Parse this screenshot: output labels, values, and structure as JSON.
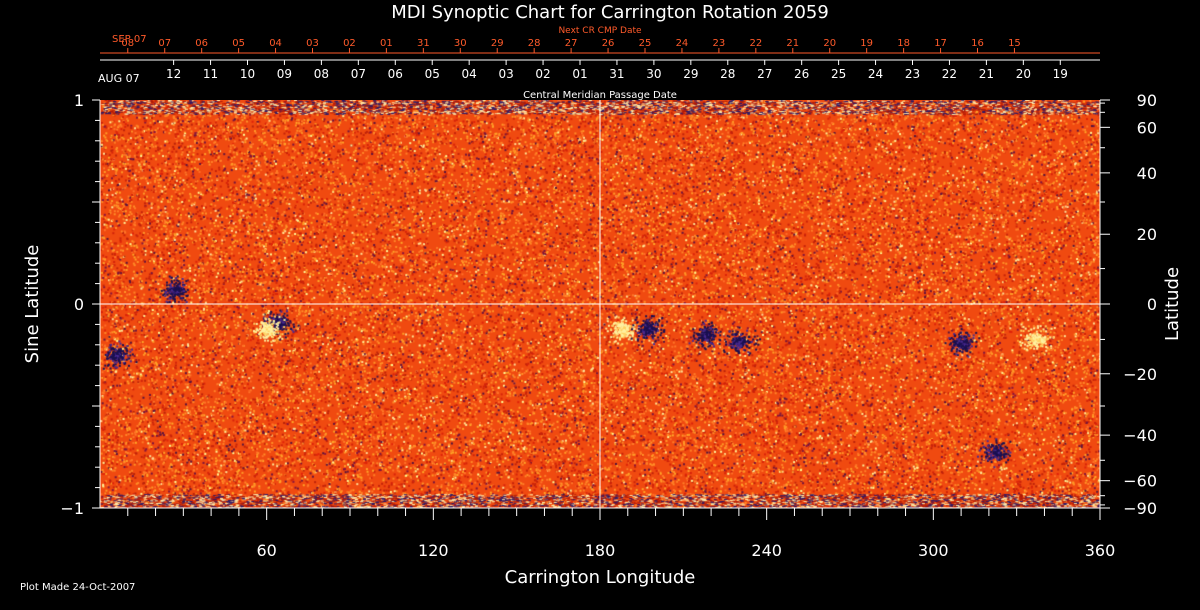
{
  "chart_data": {
    "type": "heatmap",
    "title": "MDI Synoptic Chart for Carrington Rotation 2059",
    "xlabel": "Carrington Longitude",
    "ylabel_left": "Sine Latitude",
    "ylabel_right": "Latitude",
    "xlim": [
      0,
      360
    ],
    "ylim": [
      -1,
      1
    ],
    "x_ticks": [
      60,
      120,
      180,
      240,
      300,
      360
    ],
    "y_ticks_left": [
      {
        "value": 1,
        "label": "1"
      },
      {
        "value": 0,
        "label": "0"
      },
      {
        "value": -1,
        "label": "−1"
      }
    ],
    "y_ticks_right": [
      {
        "deg": 90,
        "label": "90"
      },
      {
        "deg": 60,
        "label": "60"
      },
      {
        "deg": 40,
        "label": "40"
      },
      {
        "deg": 20,
        "label": "20"
      },
      {
        "deg": 0,
        "label": "0"
      },
      {
        "deg": -20,
        "label": "−20"
      },
      {
        "deg": -40,
        "label": "−40"
      },
      {
        "deg": -60,
        "label": "−60"
      },
      {
        "deg": -90,
        "label": "−90"
      }
    ],
    "crosshair": {
      "longitude": 180,
      "sine_latitude": 0
    },
    "next_cr_axis": {
      "title": "Next CR CMP Date",
      "month_label": "SEP 07",
      "ticks": [
        {
          "lon": 10,
          "label": "08"
        },
        {
          "lon": 23.3,
          "label": "07"
        },
        {
          "lon": 36.6,
          "label": "06"
        },
        {
          "lon": 49.9,
          "label": "05"
        },
        {
          "lon": 63.2,
          "label": "04"
        },
        {
          "lon": 76.5,
          "label": "03"
        },
        {
          "lon": 89.8,
          "label": "02"
        },
        {
          "lon": 103.1,
          "label": "01"
        },
        {
          "lon": 116.4,
          "label": "31"
        },
        {
          "lon": 129.7,
          "label": "30"
        },
        {
          "lon": 143,
          "label": "29"
        },
        {
          "lon": 156.3,
          "label": "28"
        },
        {
          "lon": 169.6,
          "label": "27"
        },
        {
          "lon": 182.9,
          "label": "26"
        },
        {
          "lon": 196.2,
          "label": "25"
        },
        {
          "lon": 209.5,
          "label": "24"
        },
        {
          "lon": 222.8,
          "label": "23"
        },
        {
          "lon": 236.1,
          "label": "22"
        },
        {
          "lon": 249.4,
          "label": "21"
        },
        {
          "lon": 262.7,
          "label": "20"
        },
        {
          "lon": 276,
          "label": "19"
        },
        {
          "lon": 289.3,
          "label": "18"
        },
        {
          "lon": 302.6,
          "label": "17"
        },
        {
          "lon": 315.9,
          "label": "16"
        },
        {
          "lon": 329.2,
          "label": "15"
        }
      ]
    },
    "cmp_axis": {
      "title": "Central Meridian Passage Date",
      "month_label": "AUG 07",
      "ticks": [
        {
          "lon": 26.5,
          "label": "12"
        },
        {
          "lon": 39.8,
          "label": "11"
        },
        {
          "lon": 53.1,
          "label": "10"
        },
        {
          "lon": 66.4,
          "label": "09"
        },
        {
          "lon": 79.7,
          "label": "08"
        },
        {
          "lon": 93,
          "label": "07"
        },
        {
          "lon": 106.3,
          "label": "06"
        },
        {
          "lon": 119.6,
          "label": "05"
        },
        {
          "lon": 132.9,
          "label": "04"
        },
        {
          "lon": 146.2,
          "label": "03"
        },
        {
          "lon": 159.5,
          "label": "02"
        },
        {
          "lon": 172.8,
          "label": "01"
        },
        {
          "lon": 186.1,
          "label": "31"
        },
        {
          "lon": 199.4,
          "label": "30"
        },
        {
          "lon": 212.7,
          "label": "29"
        },
        {
          "lon": 226,
          "label": "28"
        },
        {
          "lon": 239.3,
          "label": "27"
        },
        {
          "lon": 252.6,
          "label": "26"
        },
        {
          "lon": 265.9,
          "label": "25"
        },
        {
          "lon": 279.2,
          "label": "24"
        },
        {
          "lon": 292.5,
          "label": "23"
        },
        {
          "lon": 305.8,
          "label": "22"
        },
        {
          "lon": 319.1,
          "label": "21"
        },
        {
          "lon": 332.4,
          "label": "20"
        },
        {
          "lon": 345.7,
          "label": "19"
        }
      ]
    },
    "colors": {
      "background": "#000000",
      "field_base": "#f04a10",
      "positive_polarity": "#fff2a0",
      "negative_polarity": "#1a1050",
      "date_axis_red": "#ff5a2a",
      "axis": "#ffffff"
    },
    "active_regions": [
      {
        "lon": 64,
        "sinlat": -0.09,
        "polarity": "negative"
      },
      {
        "lon": 60,
        "sinlat": -0.12,
        "polarity": "positive"
      },
      {
        "lon": 27,
        "sinlat": 0.07,
        "polarity": "negative"
      },
      {
        "lon": 6,
        "sinlat": -0.25,
        "polarity": "negative"
      },
      {
        "lon": 188,
        "sinlat": -0.13,
        "polarity": "positive"
      },
      {
        "lon": 197,
        "sinlat": -0.12,
        "polarity": "negative"
      },
      {
        "lon": 218,
        "sinlat": -0.15,
        "polarity": "negative"
      },
      {
        "lon": 230,
        "sinlat": -0.18,
        "polarity": "negative"
      },
      {
        "lon": 310,
        "sinlat": -0.19,
        "polarity": "negative"
      },
      {
        "lon": 337,
        "sinlat": -0.17,
        "polarity": "positive"
      },
      {
        "lon": 322,
        "sinlat": -0.72,
        "polarity": "negative"
      }
    ]
  },
  "footer": {
    "plot_made": "Plot Made 24-Oct-2007"
  }
}
